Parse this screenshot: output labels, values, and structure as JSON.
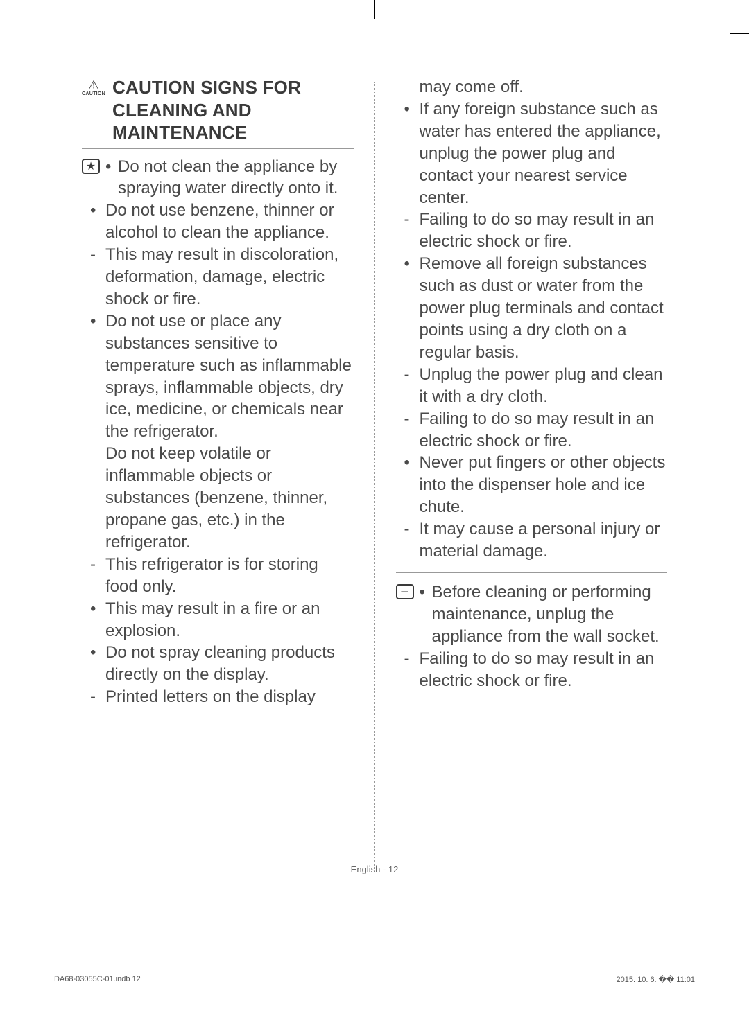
{
  "header": {
    "caution_label": "CAUTION",
    "title": "CAUTION SIGNS FOR CLEANING AND MAINTENANCE"
  },
  "icons": {
    "triangle": "⚠",
    "star": "★",
    "plug": "⎓"
  },
  "left_column": {
    "star_item": "Do not clean the appliance by spraying water directly onto it.",
    "items": [
      {
        "type": "bullet",
        "text": "Do not use benzene, thinner or alcohol to clean the appliance."
      },
      {
        "type": "dash",
        "text": "This may result in discoloration, deformation, damage, electric shock or fire."
      },
      {
        "type": "bullet",
        "text": "Do not use or place any substances sensitive to temperature such as inflammable sprays, inflammable objects, dry ice, medicine, or chemicals near the refrigerator."
      },
      {
        "type": "cont",
        "text": "Do not keep volatile or inflammable objects or substances (benzene, thinner, propane gas, etc.) in the refrigerator."
      },
      {
        "type": "dash",
        "text": "This refrigerator is for storing food only."
      },
      {
        "type": "bullet",
        "text": "This may result in a fire or an explosion."
      },
      {
        "type": "bullet",
        "text": "Do not spray cleaning products directly on the display."
      },
      {
        "type": "dash",
        "text": "Printed letters on the display"
      }
    ]
  },
  "right_column": {
    "continuation": "may come off.",
    "items": [
      {
        "type": "bullet",
        "text": "If any foreign substance such as water has entered the appliance, unplug the power plug and contact your nearest service center."
      },
      {
        "type": "dash",
        "text": "Failing to do so may result in an electric shock or fire."
      },
      {
        "type": "bullet",
        "text": "Remove all foreign substances such as dust or water from the power plug terminals and contact points using a dry cloth on a regular basis."
      },
      {
        "type": "dash",
        "text": "Unplug the power plug and clean it with a dry cloth."
      },
      {
        "type": "dash",
        "text": "Failing to do so may result in an electric shock or fire."
      },
      {
        "type": "bullet",
        "text": "Never put fingers or other objects into the dispenser hole and ice chute."
      },
      {
        "type": "dash",
        "text": "It may cause a personal injury or material damage."
      }
    ],
    "plug_item": "Before cleaning or performing maintenance, unplug the appliance from the wall socket.",
    "after_plug": [
      {
        "type": "dash",
        "text": "Failing to do so may result in an electric shock or fire."
      }
    ]
  },
  "footer": {
    "page": "English - 12",
    "doc_id": "DA68-03055C-01.indb   12",
    "timestamp": "2015. 10. 6.   �� 11:01"
  }
}
